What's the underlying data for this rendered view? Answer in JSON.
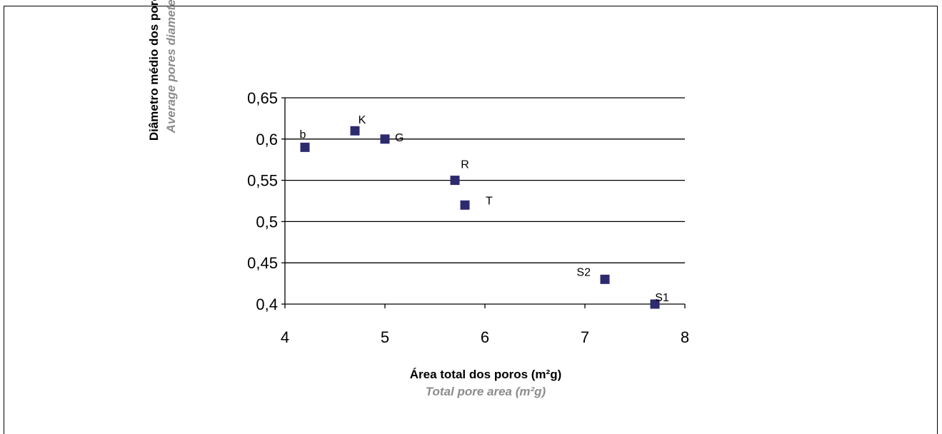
{
  "chart_data": {
    "type": "scatter",
    "xlabel": "Área total dos poros (m²g)",
    "xlabel_en": "Total pore area (m²g)",
    "ylabel": "Diâmetro médio dos poros (µm)",
    "ylabel_en": "Average pores diameter (µm)",
    "xlim": [
      4,
      8
    ],
    "ylim": [
      0.4,
      0.65
    ],
    "x_ticks": [
      4,
      5,
      6,
      7,
      8
    ],
    "x_tick_labels": [
      "4",
      "5",
      "6",
      "7",
      "8"
    ],
    "y_ticks": [
      0.4,
      0.45,
      0.5,
      0.55,
      0.6,
      0.65
    ],
    "y_tick_labels": [
      "0,4",
      "0,45",
      "0,5",
      "0,55",
      "0,6",
      "0,65"
    ],
    "grid": "horizontal",
    "marker_color": "#2e2a6e",
    "points": [
      {
        "label": "b",
        "x": 4.2,
        "y": 0.59
      },
      {
        "label": "K",
        "x": 4.7,
        "y": 0.61
      },
      {
        "label": "G",
        "x": 5.0,
        "y": 0.6
      },
      {
        "label": "R",
        "x": 5.7,
        "y": 0.55
      },
      {
        "label": "T",
        "x": 5.8,
        "y": 0.52
      },
      {
        "label": "S2",
        "x": 7.2,
        "y": 0.43
      },
      {
        "label": "S1",
        "x": 7.7,
        "y": 0.4
      }
    ]
  }
}
